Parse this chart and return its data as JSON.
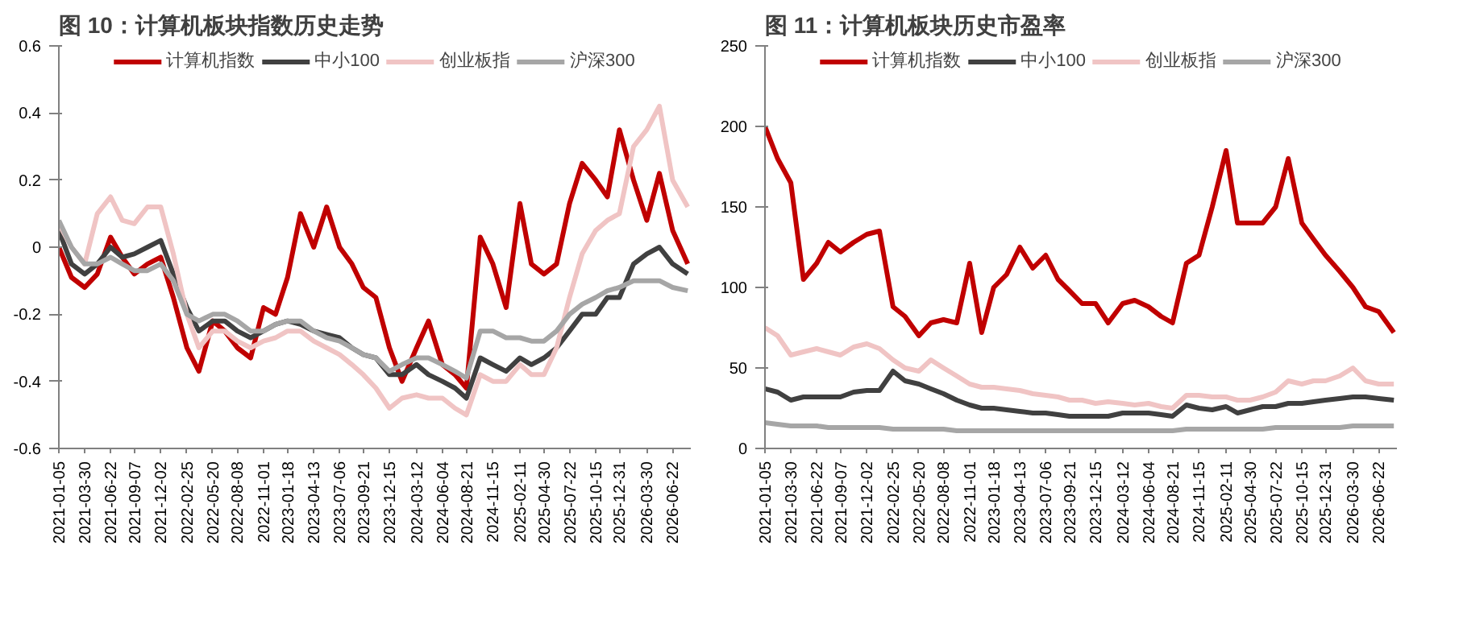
{
  "chart_data": [
    {
      "type": "line",
      "title": "图 10：计算机板块指数历史走势",
      "legend": "top",
      "grid": false,
      "x": [
        "2021-01-05",
        "2021-02-15",
        "2021-03-30",
        "2021-05-10",
        "2021-06-22",
        "2021-07-30",
        "2021-09-07",
        "2021-10-20",
        "2021-12-02",
        "2022-01-12",
        "2022-02-25",
        "2022-04-05",
        "2022-05-20",
        "2022-06-28",
        "2022-08-08",
        "2022-09-20",
        "2022-11-01",
        "2022-12-10",
        "2023-01-18",
        "2023-03-01",
        "2023-04-13",
        "2023-05-25",
        "2023-07-06",
        "2023-08-15",
        "2023-09-21",
        "2023-11-01",
        "2023-12-15",
        "2024-01-25",
        "2024-03-12",
        "2024-04-20",
        "2024-06-04",
        "2024-07-15",
        "2024-08-21",
        "2024-10-05",
        "2024-11-15",
        "2024-12-28",
        "2025-02-11",
        "2025-03-20",
        "2025-04-30",
        "2025-06-10",
        "2025-07-22",
        "2025-09-01",
        "2025-10-15",
        "2025-11-22",
        "2025-12-31",
        "2026-02-15",
        "2026-03-30",
        "2026-05-10",
        "2026-06-22",
        "2026-08-10"
      ],
      "series": [
        {
          "name": "计算机指数",
          "color": "#c00000",
          "values": [
            0.0,
            -0.09,
            -0.12,
            -0.08,
            0.03,
            -0.03,
            -0.08,
            -0.05,
            -0.03,
            -0.15,
            -0.3,
            -0.37,
            -0.22,
            -0.25,
            -0.3,
            -0.33,
            -0.18,
            -0.2,
            -0.09,
            0.1,
            0.0,
            0.12,
            0.0,
            -0.05,
            -0.12,
            -0.15,
            -0.3,
            -0.4,
            -0.3,
            -0.22,
            -0.35,
            -0.38,
            -0.42,
            0.03,
            -0.05,
            -0.18,
            0.13,
            -0.05,
            -0.08,
            -0.05,
            0.13,
            0.25,
            0.2,
            0.15,
            0.35,
            0.2,
            0.08,
            0.22,
            0.05,
            -0.05
          ]
        },
        {
          "name": "中小100",
          "color": "#404040",
          "values": [
            0.05,
            -0.05,
            -0.08,
            -0.05,
            0.0,
            -0.03,
            -0.02,
            0.0,
            0.02,
            -0.08,
            -0.18,
            -0.25,
            -0.22,
            -0.22,
            -0.25,
            -0.27,
            -0.25,
            -0.23,
            -0.22,
            -0.23,
            -0.25,
            -0.26,
            -0.27,
            -0.3,
            -0.32,
            -0.33,
            -0.38,
            -0.38,
            -0.35,
            -0.38,
            -0.4,
            -0.42,
            -0.45,
            -0.33,
            -0.35,
            -0.37,
            -0.33,
            -0.35,
            -0.33,
            -0.3,
            -0.25,
            -0.2,
            -0.2,
            -0.15,
            -0.15,
            -0.05,
            -0.02,
            0.0,
            -0.05,
            -0.08
          ]
        },
        {
          "name": "创业板指",
          "color": "#f0c4c4",
          "values": [
            0.07,
            0.0,
            -0.05,
            0.1,
            0.15,
            0.08,
            0.07,
            0.12,
            0.12,
            -0.02,
            -0.2,
            -0.3,
            -0.25,
            -0.25,
            -0.28,
            -0.3,
            -0.28,
            -0.27,
            -0.25,
            -0.25,
            -0.28,
            -0.3,
            -0.32,
            -0.35,
            -0.38,
            -0.42,
            -0.48,
            -0.45,
            -0.44,
            -0.45,
            -0.45,
            -0.48,
            -0.5,
            -0.38,
            -0.4,
            -0.4,
            -0.35,
            -0.38,
            -0.38,
            -0.3,
            -0.15,
            -0.02,
            0.05,
            0.08,
            0.1,
            0.3,
            0.35,
            0.42,
            0.2,
            0.12
          ]
        },
        {
          "name": "沪深300",
          "color": "#a6a6a6",
          "values": [
            0.08,
            0.0,
            -0.05,
            -0.05,
            -0.03,
            -0.05,
            -0.07,
            -0.07,
            -0.05,
            -0.1,
            -0.2,
            -0.22,
            -0.2,
            -0.2,
            -0.22,
            -0.25,
            -0.25,
            -0.23,
            -0.22,
            -0.22,
            -0.25,
            -0.27,
            -0.28,
            -0.3,
            -0.32,
            -0.33,
            -0.37,
            -0.35,
            -0.33,
            -0.33,
            -0.35,
            -0.37,
            -0.39,
            -0.25,
            -0.25,
            -0.27,
            -0.27,
            -0.28,
            -0.28,
            -0.25,
            -0.2,
            -0.17,
            -0.15,
            -0.13,
            -0.12,
            -0.1,
            -0.1,
            -0.1,
            -0.12,
            -0.13
          ]
        }
      ],
      "xlim": [
        "2021-01-05",
        "2026-08-20"
      ],
      "xticks": [
        "2021-01-05",
        "2021-03-30",
        "2021-06-22",
        "2021-09-07",
        "2021-12-02",
        "2022-02-25",
        "2022-05-20",
        "2022-08-08",
        "2022-11-01",
        "2023-01-18",
        "2023-04-13",
        "2023-07-06",
        "2023-09-21",
        "2023-12-15",
        "2024-03-12",
        "2024-06-04",
        "2024-08-21",
        "2024-11-15",
        "2025-02-11",
        "2025-04-30",
        "2025-07-22",
        "2025-10-15",
        "2025-12-31",
        "2026-03-30",
        "2026-06-22"
      ],
      "ylim": [
        -0.6,
        0.6
      ],
      "yticks": [
        -0.6,
        -0.4,
        -0.2,
        0,
        0.2,
        0.4,
        0.6
      ]
    },
    {
      "type": "line",
      "title": "图 11：计算机板块历史市盈率",
      "legend": "top",
      "grid": false,
      "x": [
        "2021-01-05",
        "2021-02-15",
        "2021-03-30",
        "2021-05-10",
        "2021-06-22",
        "2021-07-30",
        "2021-09-07",
        "2021-10-20",
        "2021-12-02",
        "2022-01-12",
        "2022-02-25",
        "2022-04-05",
        "2022-05-20",
        "2022-06-28",
        "2022-08-08",
        "2022-09-20",
        "2022-11-01",
        "2022-12-10",
        "2023-01-18",
        "2023-03-01",
        "2023-04-13",
        "2023-05-25",
        "2023-07-06",
        "2023-08-15",
        "2023-09-21",
        "2023-11-01",
        "2023-12-15",
        "2024-01-25",
        "2024-03-12",
        "2024-04-20",
        "2024-06-04",
        "2024-07-15",
        "2024-08-21",
        "2024-10-05",
        "2024-11-15",
        "2024-12-28",
        "2025-02-11",
        "2025-03-20",
        "2025-04-30",
        "2025-06-10",
        "2025-07-22",
        "2025-09-01",
        "2025-10-15",
        "2025-11-22",
        "2025-12-31",
        "2026-02-15",
        "2026-03-30",
        "2026-05-10",
        "2026-06-22",
        "2026-08-10"
      ],
      "series": [
        {
          "name": "计算机指数",
          "color": "#c00000",
          "values": [
            200,
            180,
            165,
            105,
            115,
            128,
            122,
            128,
            133,
            135,
            88,
            82,
            70,
            78,
            80,
            78,
            115,
            72,
            100,
            108,
            125,
            112,
            120,
            105,
            98,
            90,
            90,
            78,
            90,
            92,
            88,
            82,
            78,
            115,
            120,
            150,
            185,
            140,
            140,
            140,
            150,
            180,
            140,
            130,
            120,
            110,
            100,
            88,
            85,
            72
          ]
        },
        {
          "name": "中小100",
          "color": "#404040",
          "values": [
            37,
            35,
            30,
            32,
            32,
            32,
            32,
            35,
            36,
            36,
            48,
            42,
            40,
            37,
            34,
            30,
            27,
            25,
            25,
            24,
            23,
            22,
            22,
            21,
            20,
            20,
            20,
            20,
            22,
            22,
            22,
            21,
            20,
            27,
            25,
            24,
            26,
            22,
            24,
            26,
            26,
            28,
            28,
            29,
            30,
            31,
            32,
            32,
            31,
            30
          ]
        },
        {
          "name": "创业板指",
          "color": "#f0c4c4",
          "values": [
            75,
            70,
            58,
            60,
            62,
            60,
            58,
            63,
            65,
            62,
            55,
            50,
            48,
            55,
            50,
            45,
            40,
            38,
            38,
            37,
            36,
            34,
            33,
            32,
            30,
            30,
            28,
            29,
            28,
            27,
            28,
            26,
            25,
            33,
            33,
            32,
            32,
            30,
            30,
            32,
            35,
            42,
            40,
            42,
            42,
            45,
            50,
            42,
            40,
            40
          ]
        },
        {
          "name": "沪深300",
          "color": "#a6a6a6",
          "values": [
            16,
            15,
            14,
            14,
            14,
            13,
            13,
            13,
            13,
            13,
            12,
            12,
            12,
            12,
            12,
            11,
            11,
            11,
            11,
            11,
            11,
            11,
            11,
            11,
            11,
            11,
            11,
            11,
            11,
            11,
            11,
            11,
            11,
            12,
            12,
            12,
            12,
            12,
            12,
            12,
            13,
            13,
            13,
            13,
            13,
            13,
            14,
            14,
            14,
            14
          ]
        }
      ],
      "xlim": [
        "2021-01-05",
        "2026-08-20"
      ],
      "xticks": [
        "2021-01-05",
        "2021-03-30",
        "2021-06-22",
        "2021-09-07",
        "2021-12-02",
        "2022-02-25",
        "2022-05-20",
        "2022-08-08",
        "2022-11-01",
        "2023-01-18",
        "2023-04-13",
        "2023-07-06",
        "2023-09-21",
        "2023-12-15",
        "2024-03-12",
        "2024-06-04",
        "2024-08-21",
        "2024-11-15",
        "2025-02-11",
        "2025-04-30",
        "2025-07-22",
        "2025-10-15",
        "2025-12-31",
        "2026-03-30",
        "2026-06-22"
      ],
      "ylim": [
        0,
        250
      ],
      "yticks": [
        0,
        50,
        100,
        150,
        200,
        250
      ]
    }
  ]
}
